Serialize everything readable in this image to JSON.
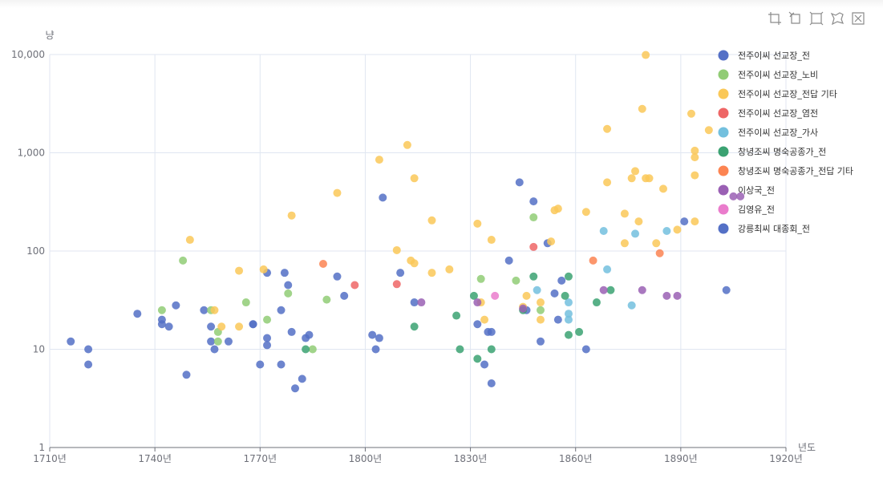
{
  "toolbox": {
    "items": [
      {
        "name": "zoom-icon"
      },
      {
        "name": "zoom-reset-icon"
      },
      {
        "name": "restore-icon"
      },
      {
        "name": "lasso-icon"
      },
      {
        "name": "clear-selection-icon"
      }
    ]
  },
  "chart_data": {
    "type": "scatter",
    "title": "",
    "xlabel": "년도",
    "ylabel": "냥",
    "xlim": [
      1710,
      1920
    ],
    "ylim": [
      1,
      10000
    ],
    "yscale": "log",
    "grid": true,
    "legend_position": "right",
    "x_ticks": [
      {
        "value": 1710,
        "label": "1710년"
      },
      {
        "value": 1740,
        "label": "1740년"
      },
      {
        "value": 1770,
        "label": "1770년"
      },
      {
        "value": 1800,
        "label": "1800년"
      },
      {
        "value": 1830,
        "label": "1830년"
      },
      {
        "value": 1860,
        "label": "1860년"
      },
      {
        "value": 1890,
        "label": "1890년"
      },
      {
        "value": 1920,
        "label": "1920년"
      }
    ],
    "y_ticks": [
      {
        "value": 1,
        "label": "1"
      },
      {
        "value": 10,
        "label": "10"
      },
      {
        "value": 100,
        "label": "100"
      },
      {
        "value": 1000,
        "label": "1,000"
      },
      {
        "value": 10000,
        "label": "10,000"
      }
    ],
    "series": [
      {
        "name": "전주이씨 선교장_전",
        "color": "#5470c6",
        "points": [
          [
            1716,
            12
          ],
          [
            1721,
            10
          ],
          [
            1721,
            7
          ],
          [
            1735,
            23
          ],
          [
            1742,
            20
          ],
          [
            1742,
            18
          ],
          [
            1744,
            17
          ],
          [
            1746,
            28
          ],
          [
            1749,
            5.5
          ],
          [
            1754,
            25
          ],
          [
            1756,
            17
          ],
          [
            1756,
            12
          ],
          [
            1757,
            10
          ],
          [
            1761,
            12
          ],
          [
            1768,
            18
          ],
          [
            1770,
            7
          ],
          [
            1772,
            60
          ],
          [
            1772,
            13
          ],
          [
            1772,
            11
          ],
          [
            1776,
            25
          ],
          [
            1776,
            7
          ],
          [
            1777,
            60
          ],
          [
            1778,
            45
          ],
          [
            1779,
            15
          ],
          [
            1780,
            4
          ],
          [
            1782,
            5
          ],
          [
            1783,
            13
          ],
          [
            1784,
            14
          ],
          [
            1792,
            55
          ],
          [
            1794,
            35
          ],
          [
            1802,
            14
          ],
          [
            1803,
            10
          ],
          [
            1804,
            13
          ],
          [
            1805,
            350
          ],
          [
            1810,
            60
          ],
          [
            1814,
            30
          ],
          [
            1832,
            18
          ],
          [
            1834,
            7
          ],
          [
            1835,
            15
          ],
          [
            1836,
            15
          ],
          [
            1836,
            4.5
          ],
          [
            1841,
            80
          ],
          [
            1844,
            500
          ],
          [
            1846,
            25
          ],
          [
            1848,
            320
          ],
          [
            1850,
            12
          ],
          [
            1852,
            120
          ],
          [
            1854,
            37
          ],
          [
            1855,
            20
          ],
          [
            1856,
            50
          ],
          [
            1863,
            10
          ],
          [
            1891,
            200
          ],
          [
            1903,
            40
          ]
        ]
      },
      {
        "name": "전주이씨 선교장_노비",
        "color": "#91cc75",
        "points": [
          [
            1742,
            25
          ],
          [
            1748,
            80
          ],
          [
            1756,
            25
          ],
          [
            1758,
            15
          ],
          [
            1758,
            12
          ],
          [
            1766,
            30
          ],
          [
            1772,
            20
          ],
          [
            1778,
            37
          ],
          [
            1785,
            10
          ],
          [
            1789,
            32
          ],
          [
            1833,
            52
          ],
          [
            1843,
            50
          ],
          [
            1848,
            220
          ],
          [
            1850,
            25
          ]
        ]
      },
      {
        "name": "전주이씨 선교장_전답 기타",
        "color": "#fac858",
        "points": [
          [
            1750,
            130
          ],
          [
            1757,
            25
          ],
          [
            1759,
            17
          ],
          [
            1764,
            17
          ],
          [
            1764,
            63
          ],
          [
            1771,
            65
          ],
          [
            1779,
            230
          ],
          [
            1792,
            390
          ],
          [
            1804,
            850
          ],
          [
            1809,
            102
          ],
          [
            1812,
            1200
          ],
          [
            1813,
            80
          ],
          [
            1814,
            75
          ],
          [
            1814,
            550
          ],
          [
            1819,
            205
          ],
          [
            1819,
            60
          ],
          [
            1824,
            65
          ],
          [
            1832,
            190
          ],
          [
            1833,
            30
          ],
          [
            1834,
            20
          ],
          [
            1836,
            130
          ],
          [
            1845,
            27
          ],
          [
            1846,
            35
          ],
          [
            1850,
            30
          ],
          [
            1850,
            20
          ],
          [
            1853,
            125
          ],
          [
            1854,
            260
          ],
          [
            1855,
            270
          ],
          [
            1863,
            250
          ],
          [
            1869,
            500
          ],
          [
            1869,
            1750
          ],
          [
            1874,
            240
          ],
          [
            1874,
            120
          ],
          [
            1876,
            550
          ],
          [
            1877,
            650
          ],
          [
            1878,
            200
          ],
          [
            1879,
            2800
          ],
          [
            1880,
            9900
          ],
          [
            1880,
            550
          ],
          [
            1881,
            550
          ],
          [
            1883,
            120
          ],
          [
            1885,
            430
          ],
          [
            1889,
            165
          ],
          [
            1893,
            2500
          ],
          [
            1894,
            1050
          ],
          [
            1894,
            900
          ],
          [
            1894,
            590
          ],
          [
            1894,
            200
          ],
          [
            1898,
            1700
          ]
        ]
      },
      {
        "name": "전주이씨 선교장_염전",
        "color": "#ee6666",
        "points": [
          [
            1797,
            45
          ],
          [
            1809,
            46
          ],
          [
            1848,
            110
          ]
        ]
      },
      {
        "name": "전주이씨 선교장_가사",
        "color": "#73c0de",
        "points": [
          [
            1849,
            40
          ],
          [
            1858,
            30
          ],
          [
            1858,
            23
          ],
          [
            1858,
            20
          ],
          [
            1868,
            160
          ],
          [
            1869,
            65
          ],
          [
            1876,
            28
          ],
          [
            1877,
            150
          ],
          [
            1886,
            160
          ]
        ]
      },
      {
        "name": "창녕조씨 명숙공종가_전",
        "color": "#3ba272",
        "points": [
          [
            1783,
            10
          ],
          [
            1814,
            17
          ],
          [
            1826,
            22
          ],
          [
            1827,
            10
          ],
          [
            1831,
            35
          ],
          [
            1832,
            8
          ],
          [
            1836,
            10
          ],
          [
            1845,
            25
          ],
          [
            1848,
            55
          ],
          [
            1857,
            35
          ],
          [
            1858,
            55
          ],
          [
            1858,
            14
          ],
          [
            1861,
            15
          ],
          [
            1866,
            30
          ],
          [
            1870,
            40
          ]
        ]
      },
      {
        "name": "창녕조씨 명숙공종가_전답 기타",
        "color": "#fc8452",
        "points": [
          [
            1788,
            74
          ],
          [
            1865,
            80
          ],
          [
            1884,
            95
          ]
        ]
      },
      {
        "name": "이상국_전",
        "color": "#9a60b4",
        "points": [
          [
            1816,
            30
          ],
          [
            1832,
            30
          ],
          [
            1845,
            26
          ],
          [
            1868,
            40
          ],
          [
            1879,
            40
          ],
          [
            1886,
            35
          ],
          [
            1889,
            35
          ],
          [
            1905,
            360
          ],
          [
            1907,
            360
          ]
        ]
      },
      {
        "name": "김영유_전",
        "color": "#ea7ccc",
        "points": [
          [
            1837,
            35
          ]
        ]
      },
      {
        "name": "강릉최씨 대종회_전",
        "color": "#5470c6",
        "points": [
          [
            1768,
            18
          ]
        ]
      }
    ]
  }
}
